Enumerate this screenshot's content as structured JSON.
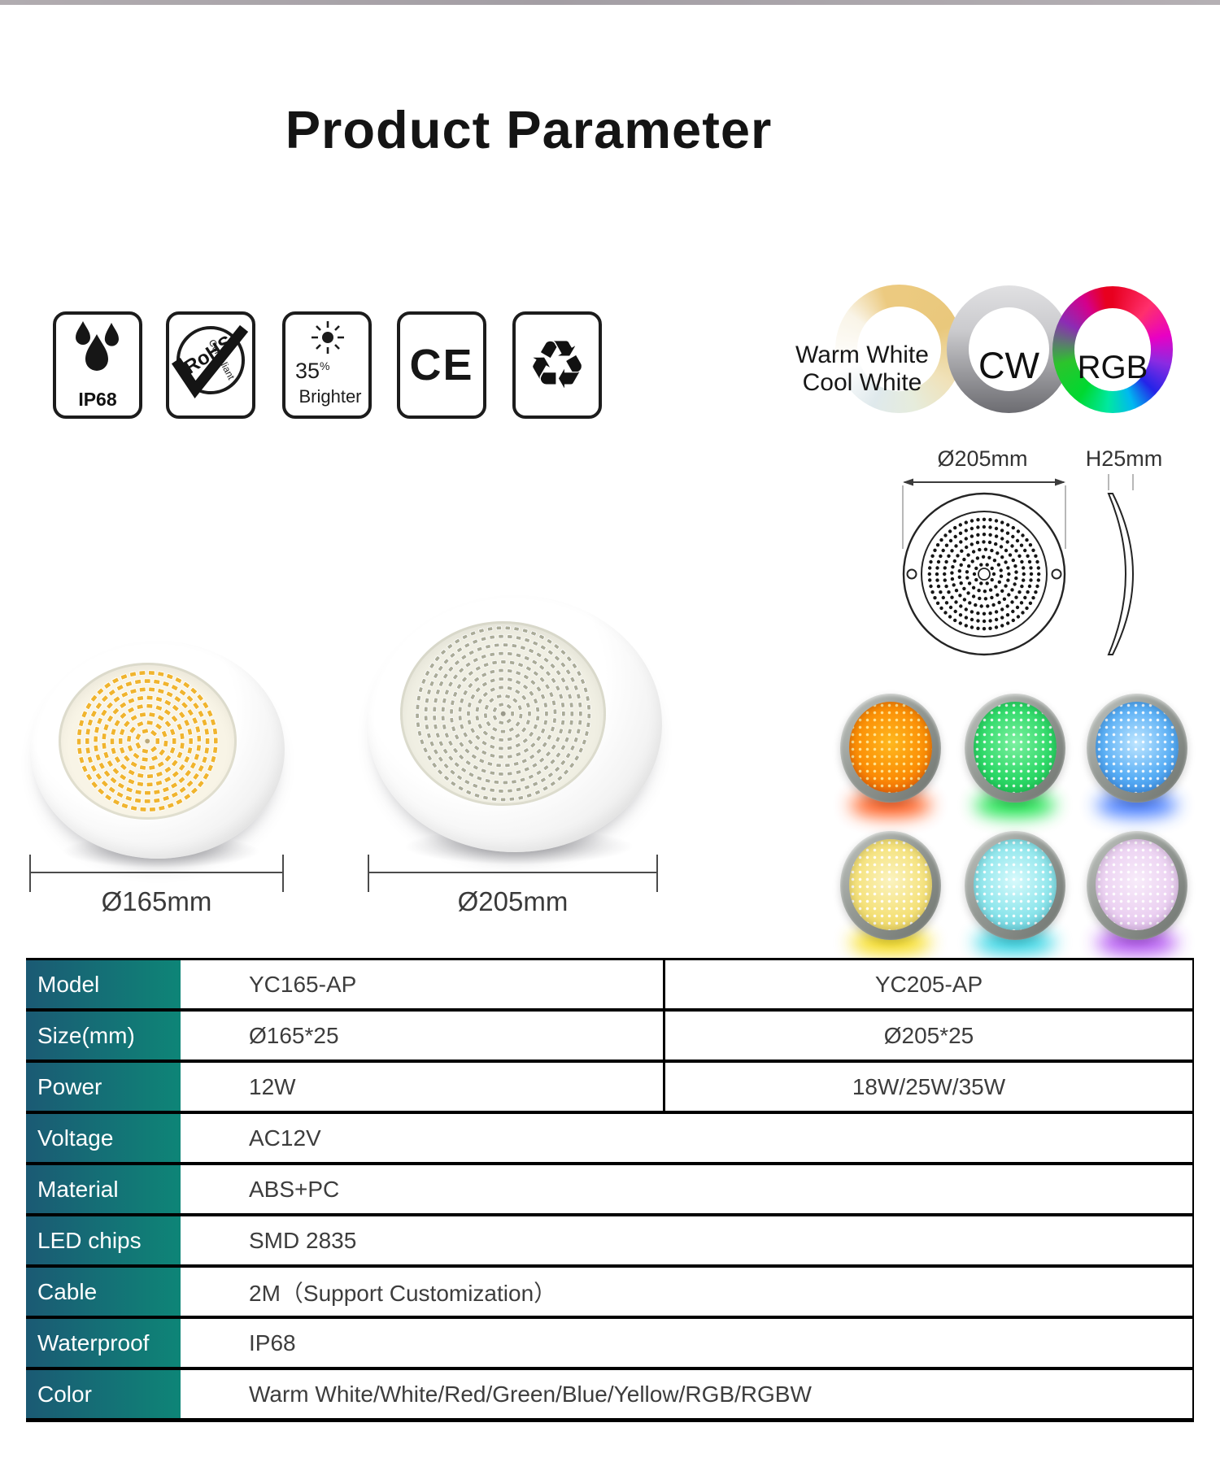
{
  "title": "Product Parameter",
  "certifications": {
    "ip68": {
      "label": "IP68"
    },
    "rohs": {
      "title": "RoHS",
      "subtitle": "Compliant"
    },
    "brighter": {
      "value": "35",
      "percent_sign": "%",
      "label": "Brighter"
    },
    "ce": {
      "label": "CE"
    },
    "recycle": {
      "glyph": "♻"
    }
  },
  "color_modes": {
    "warm_cool": {
      "caption_line1": "Warm White",
      "caption_line2": "Cool White"
    },
    "cool_white": {
      "label": "CW"
    },
    "rgb": {
      "label": "RGB"
    }
  },
  "size_diagram": {
    "diameter_label": "Ø205mm",
    "height_label": "H25mm"
  },
  "products": [
    {
      "diameter_label": "Ø165mm",
      "led_color": "#f0b42e"
    },
    {
      "diameter_label": "Ø205mm",
      "led_color": "#aaab98"
    }
  ],
  "light_colors": [
    {
      "name": "orange",
      "face": "#fb8d05",
      "glow": "#ff4800"
    },
    {
      "name": "green",
      "face": "#2ed968",
      "glow": "#00e038"
    },
    {
      "name": "blue",
      "face": "#58aef5",
      "glow": "#2e6cff"
    },
    {
      "name": "yellow",
      "face": "#f5e27c",
      "glow": "#f5d800"
    },
    {
      "name": "cyan",
      "face": "#8fe6ec",
      "glow": "#19cfe0"
    },
    {
      "name": "purple",
      "face": "#ecd2f2",
      "glow": "#a83cf0"
    }
  ],
  "spec_table": {
    "accent_gradient": [
      "#1b5a74",
      "#0e8577"
    ],
    "rows": [
      {
        "label": "Model",
        "col1": "YC165-AP",
        "col2": "YC205-AP"
      },
      {
        "label": "Size(mm)",
        "col1": "Ø165*25",
        "col2": "Ø205*25"
      },
      {
        "label": "Power",
        "col1": "12W",
        "col2": "18W/25W/35W"
      },
      {
        "label": "Voltage",
        "value": "AC12V"
      },
      {
        "label": "Material",
        "value": "ABS+PC"
      },
      {
        "label": "LED chips",
        "value": "SMD 2835"
      },
      {
        "label": "Cable",
        "value": "2M（Support Customization）"
      },
      {
        "label": "Waterproof",
        "value": "IP68"
      },
      {
        "label": "Color",
        "value": "Warm White/White/Red/Green/Blue/Yellow/RGB/RGBW"
      }
    ]
  }
}
